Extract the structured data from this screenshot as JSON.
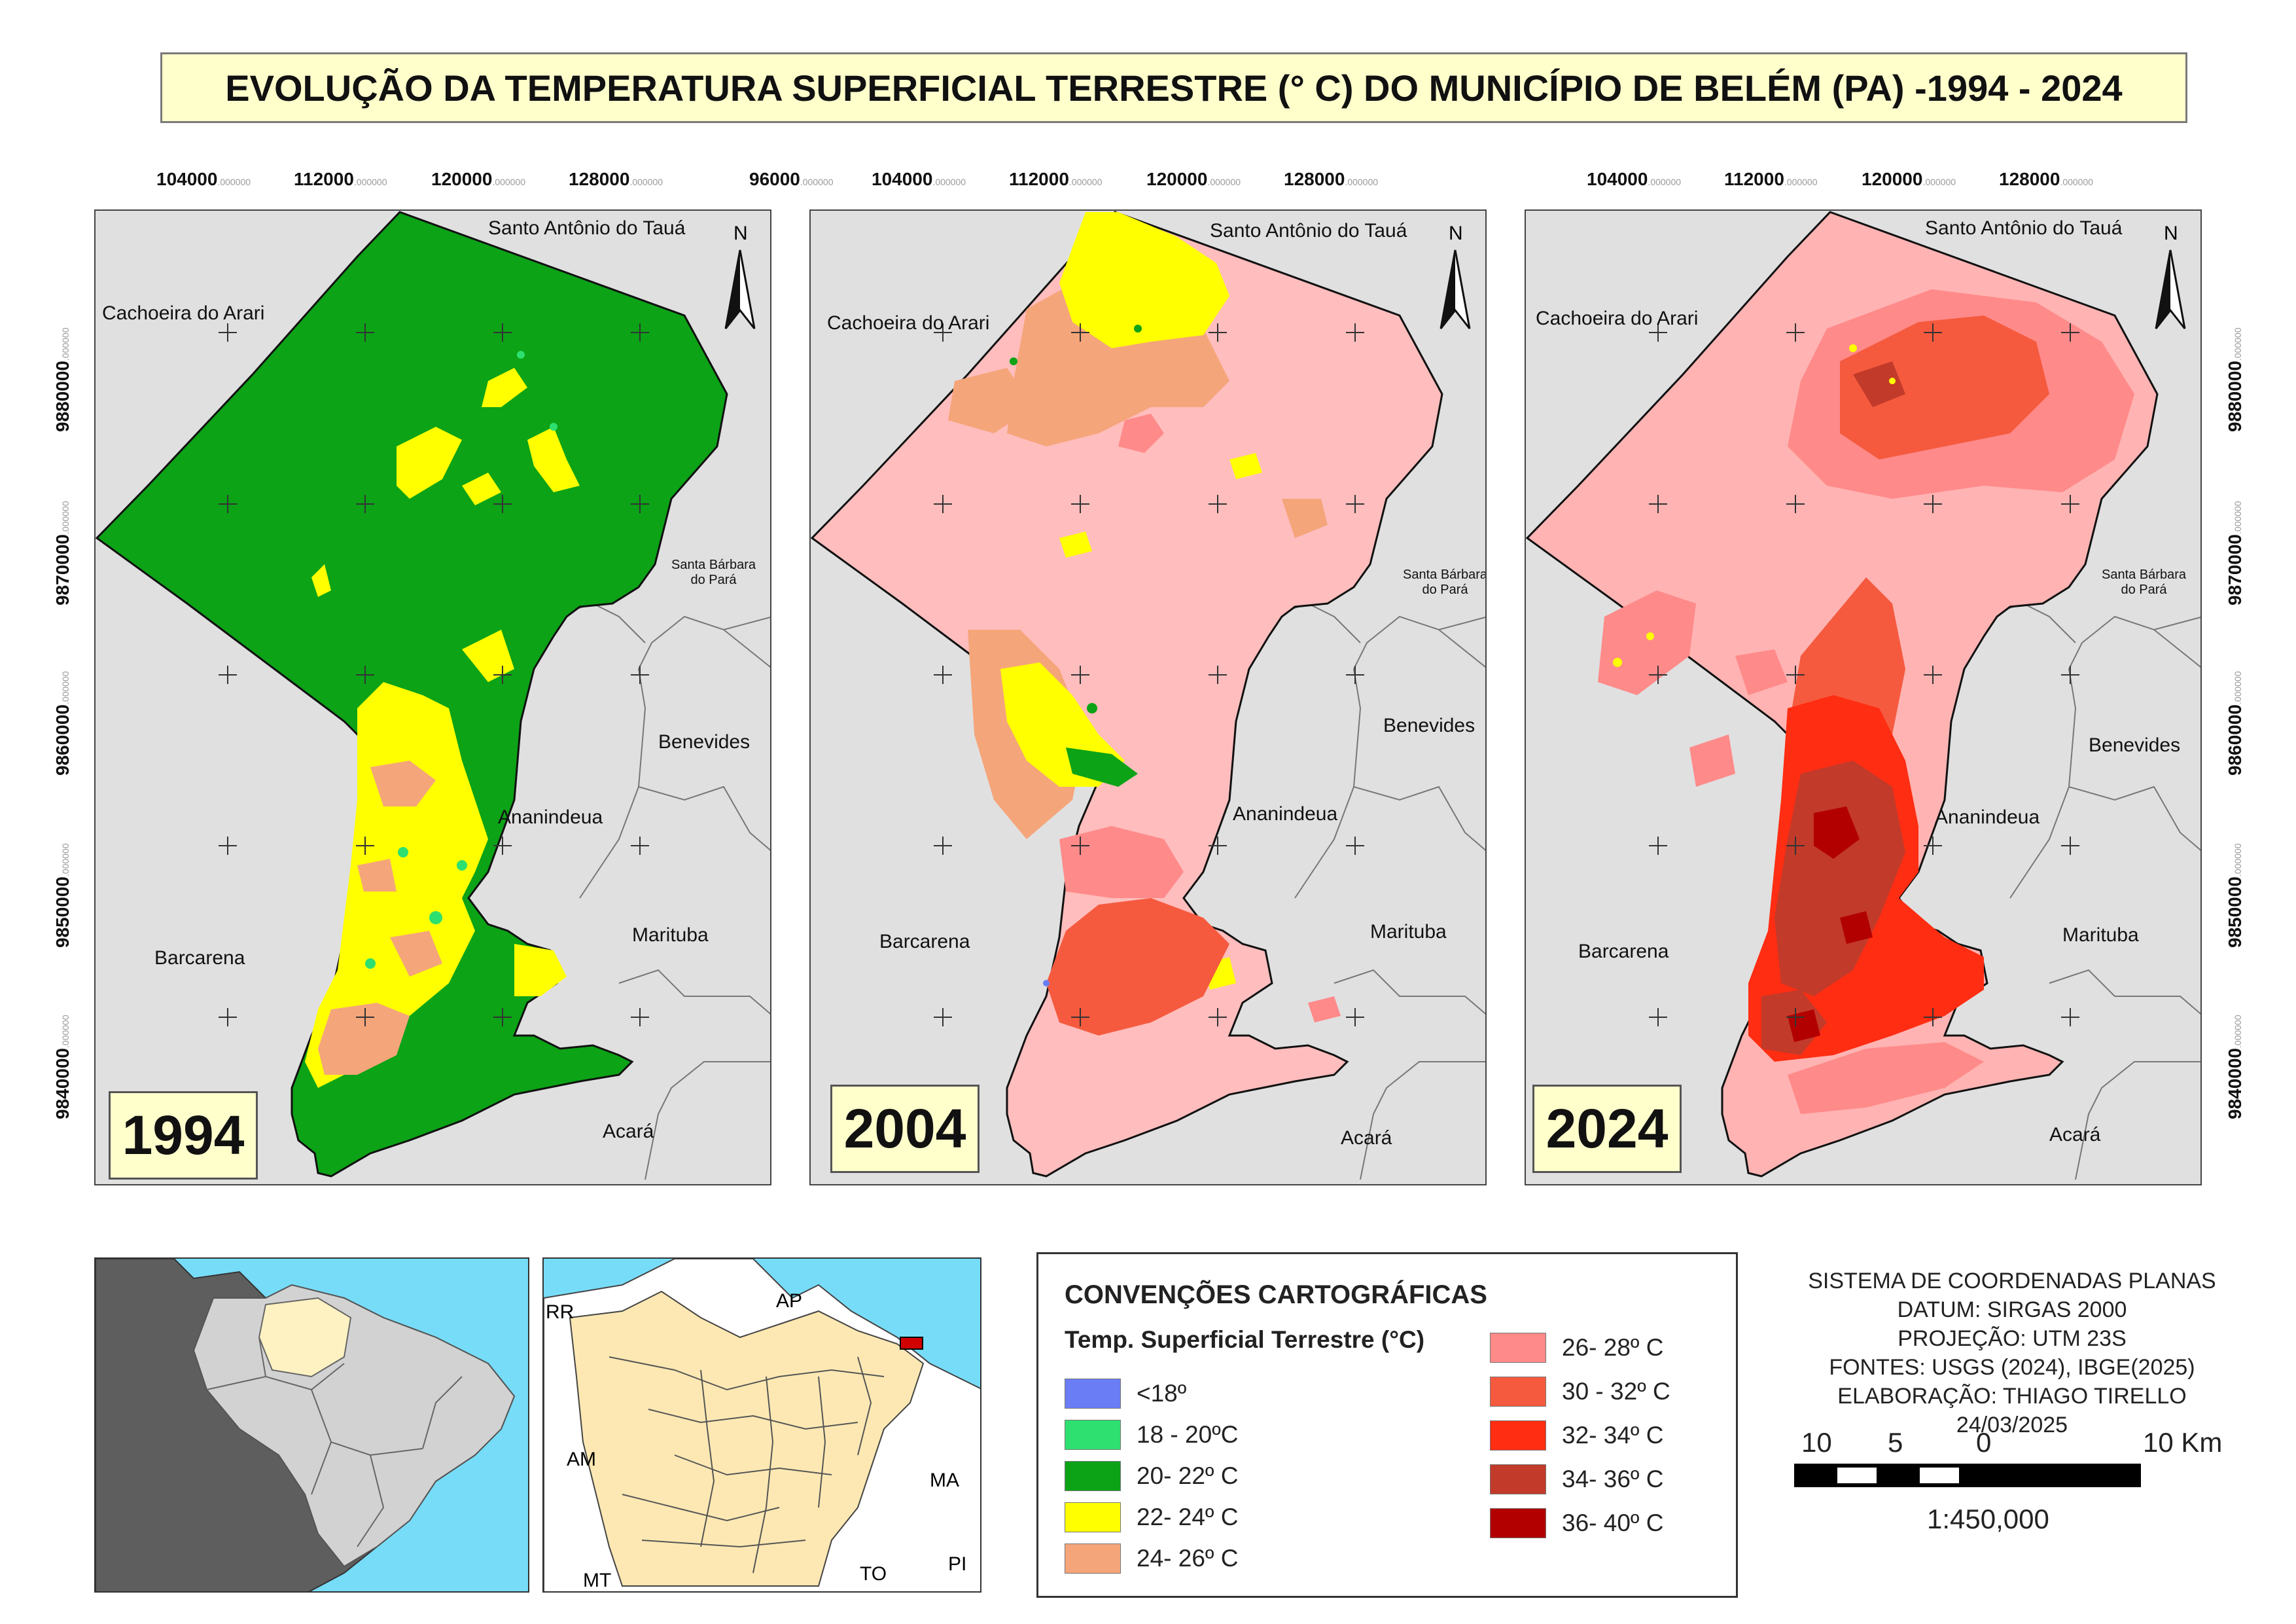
{
  "title": "EVOLUÇÃO DA TEMPERATURA SUPERFICIAL TERRESTRE (° C) DO MUNICÍPIO DE BELÉM (PA) -1994 - 2024",
  "panels": [
    {
      "year": "1994",
      "x_ticks": [
        "104000",
        "112000",
        "120000",
        "128000"
      ],
      "y_ticks": [
        "9880000",
        "9870000",
        "9860000",
        "9850000",
        "9840000"
      ],
      "places": {
        "santo_antonio": "Santo Antônio do Tauá",
        "cachoeira": "Cachoeira do Arari",
        "santa_barbara_1": "Santa Bárbara",
        "santa_barbara_2": "do Pará",
        "benevides": "Benevides",
        "ananindeua": "Ananindeua",
        "marituba": "Marituba",
        "barcarena": "Barcarena",
        "acara": "Acará"
      },
      "base_color": "#0ca316"
    },
    {
      "year": "2004",
      "x_ticks": [
        "96000",
        "104000",
        "112000",
        "120000",
        "128000"
      ],
      "y_ticks": [],
      "places": {
        "santo_antonio": "Santo Antônio do Tauá",
        "cachoeira": "Cachoeira do Arari",
        "santa_barbara_1": "Santa Bárbara",
        "santa_barbara_2": "do Pará",
        "benevides": "Benevides",
        "ananindeua": "Ananindeua",
        "marituba": "Marituba",
        "barcarena": "Barcarena",
        "acara": "Acará"
      },
      "base_color": "#ffbdbd"
    },
    {
      "year": "2024",
      "x_ticks": [
        "104000",
        "112000",
        "120000",
        "128000"
      ],
      "y_ticks": [
        "9880000",
        "9870000",
        "9860000",
        "9850000",
        "9840000"
      ],
      "places": {
        "santo_antonio": "Santo Antônio do Tauá",
        "cachoeira": "Cachoeira do Arari",
        "santa_barbara_1": "Santa Bárbara",
        "santa_barbara_2": "do Pará",
        "benevides": "Benevides",
        "ananindeua": "Ananindeua",
        "marituba": "Marituba",
        "barcarena": "Barcarena",
        "acara": "Acará"
      },
      "base_color": "#ffb3b3"
    }
  ],
  "tick_decimal": ".000000",
  "north_label": "N",
  "inset_para_labels": {
    "rr": "RR",
    "ap": "AP",
    "am": "AM",
    "ma": "MA",
    "mt": "MT",
    "to": "TO",
    "pi": "PI"
  },
  "legend": {
    "title": "CONVENÇÕES CARTOGRÁFICAS",
    "subtitle": "Temp. Superficial Terrestre (°C)",
    "classes": [
      {
        "label": "<18º",
        "color": "#6a7df5"
      },
      {
        "label": "18 - 20ºC",
        "color": "#2ee06f"
      },
      {
        "label": "20- 22º C",
        "color": "#0ca316"
      },
      {
        "label": "22- 24º C",
        "color": "#ffff00"
      },
      {
        "label": "24- 26º C",
        "color": "#f5a57a"
      },
      {
        "label": "26- 28º C",
        "color": "#ff8a8a"
      },
      {
        "label": "30 -  32º C",
        "color": "#f55a3e"
      },
      {
        "label": "32- 34º C",
        "color": "#ff2d12"
      },
      {
        "label": "34- 36º C",
        "color": "#c23a2a"
      },
      {
        "label": "36- 40º C",
        "color": "#b20000"
      }
    ]
  },
  "info": {
    "line1": "SISTEMA DE COORDENADAS PLANAS",
    "line2": "DATUM: SIRGAS 2000",
    "line3": "PROJEÇÃO: UTM 23S",
    "line4": "FONTES: USGS (2024), IBGE(2025)",
    "line5": "ELABORAÇÃO: THIAGO TIRELLO",
    "line6": "24/03/2025"
  },
  "scale": {
    "l10": "10",
    "l5": "5",
    "l0": "0",
    "l10km": "10 Km",
    "ratio": "1:450,000"
  }
}
